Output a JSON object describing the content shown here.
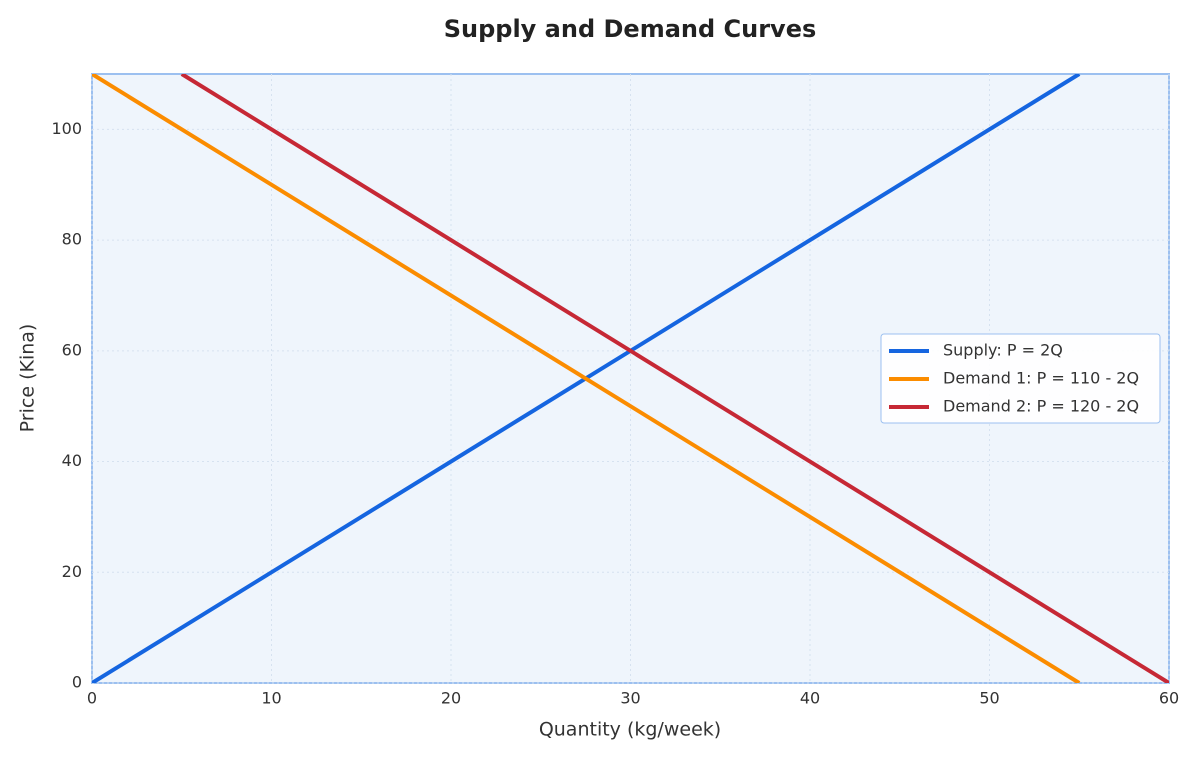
{
  "chart_data": {
    "type": "line",
    "title": "Supply and Demand Curves",
    "x_label": "Quantity (kg/week)",
    "y_label": "Price (Kina)",
    "xlim": [
      0,
      60
    ],
    "xticks": [
      0,
      10,
      20,
      30,
      40,
      50,
      60
    ],
    "ylim": [
      0,
      110
    ],
    "yticks": [
      0,
      20,
      40,
      60,
      80,
      100
    ],
    "grid": true,
    "legend": "right",
    "series": [
      {
        "name": "Supply: P = 2Q",
        "color": "#1565e0",
        "x": [
          0,
          55
        ],
        "values": [
          0,
          110
        ]
      },
      {
        "name": "Demand 1: P = 110 - 2Q",
        "color": "#fb8c00",
        "x": [
          0,
          55
        ],
        "values": [
          110,
          0
        ]
      },
      {
        "name": "Demand 2: P = 120 - 2Q",
        "color": "#c62835",
        "x": [
          5,
          60
        ],
        "values": [
          110,
          0
        ]
      }
    ]
  }
}
